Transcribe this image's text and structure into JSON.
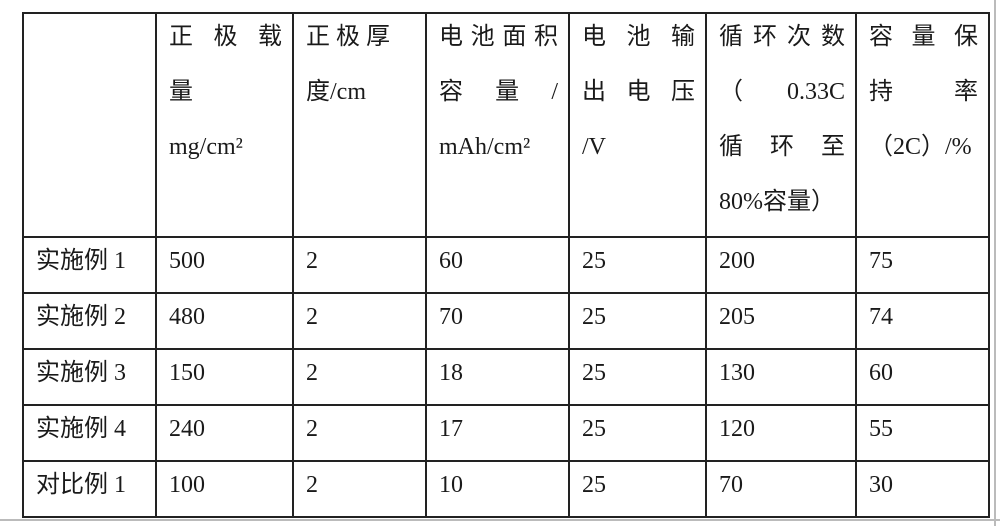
{
  "table": {
    "headers": [
      {
        "lines": []
      },
      {
        "lines": [
          "正 极 载",
          "量",
          "mg/cm²"
        ]
      },
      {
        "lines": [
          "正 极 厚",
          "度/cm"
        ]
      },
      {
        "lines": [
          "电池面积",
          "容 量 /",
          "mAh/cm²"
        ]
      },
      {
        "lines": [
          "电 池 输",
          "出 电 压",
          "/V"
        ]
      },
      {
        "lines": [
          "循环次数",
          "（ 0.33C",
          "循 环 至",
          "80%容量）"
        ]
      },
      {
        "lines": [
          "容 量 保",
          "持 率",
          "（2C）/%"
        ]
      }
    ],
    "rows": [
      [
        "实施例 1",
        "500",
        "2",
        "60",
        "25",
        "200",
        "75"
      ],
      [
        "实施例 2",
        "480",
        "2",
        "70",
        "25",
        "205",
        "74"
      ],
      [
        "实施例 3",
        "150",
        "2",
        "18",
        "25",
        "130",
        "60"
      ],
      [
        "实施例 4",
        "240",
        "2",
        "17",
        "25",
        "120",
        "55"
      ],
      [
        "对比例 1",
        "100",
        "2",
        "10",
        "25",
        "70",
        "30"
      ]
    ]
  }
}
